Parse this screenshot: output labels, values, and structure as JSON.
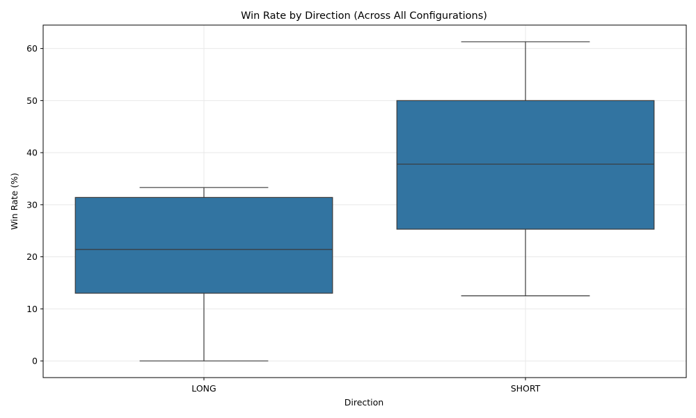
{
  "chart_data": {
    "type": "box",
    "title": "Win Rate by Direction (Across All Configurations)",
    "xlabel": "Direction",
    "ylabel": "Win Rate (%)",
    "ylim": [
      -3.2,
      64.5
    ],
    "yticks": [
      0,
      10,
      20,
      30,
      40,
      50,
      60
    ],
    "grid": true,
    "categories": [
      "LONG",
      "SHORT"
    ],
    "boxes": [
      {
        "name": "LONG",
        "min": 0,
        "q1": 13.0,
        "median": 21.4,
        "q3": 31.4,
        "max": 33.3
      },
      {
        "name": "SHORT",
        "min": 12.5,
        "q1": 25.3,
        "median": 37.8,
        "q3": 50.0,
        "max": 61.3
      }
    ],
    "color": "#3274a1"
  }
}
